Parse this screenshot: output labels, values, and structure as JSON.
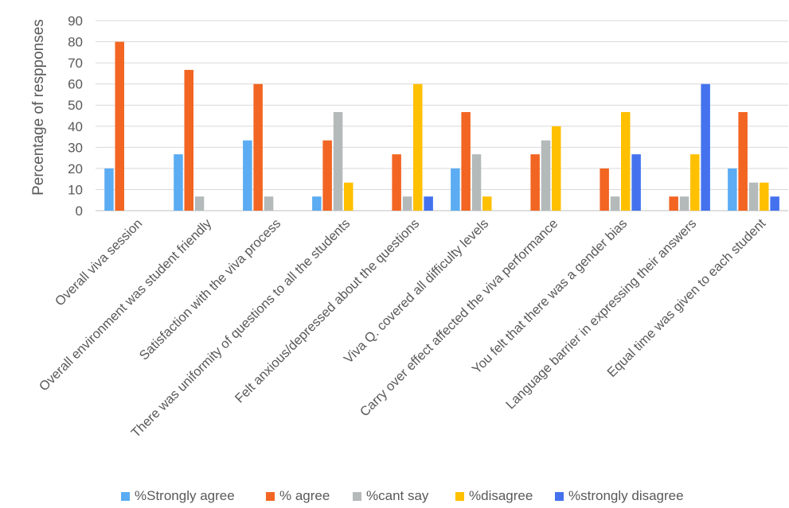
{
  "chart_data": {
    "type": "bar",
    "title": "",
    "xlabel": "",
    "ylabel": "Percentage of respponses",
    "ylim": [
      0,
      90
    ],
    "yticks": [
      0,
      10,
      20,
      30,
      40,
      50,
      60,
      70,
      80,
      90
    ],
    "grid": true,
    "legend_position": "bottom",
    "categories": [
      "Overall viva session",
      "Overall environment was student friendly",
      "Satisfaction with the viva process",
      "There was uniformity of questions to all the students",
      "Felt anxious/depressed about the questions",
      "Viva Q. covered all difficulty levels",
      "Carry over effect affected the viva performance",
      "You felt that there was a gender bias",
      "Language barrier in expressing their answers",
      "Equal time was given to each student"
    ],
    "series": [
      {
        "name": "%Strongly agree",
        "color": "#5BACF2",
        "values": [
          20,
          26.7,
          33.3,
          6.7,
          0,
          20,
          0,
          0,
          0,
          20
        ]
      },
      {
        "name": "% agree",
        "color": "#F26522",
        "values": [
          80,
          66.7,
          60,
          33.3,
          26.7,
          46.7,
          26.7,
          20,
          6.7,
          46.7
        ]
      },
      {
        "name": "%cant say",
        "color": "#B4B9B9",
        "values": [
          0,
          6.7,
          6.7,
          46.7,
          6.7,
          26.7,
          33.3,
          6.7,
          6.7,
          13.3
        ]
      },
      {
        "name": "%disagree",
        "color": "#FFC000",
        "values": [
          0,
          0,
          0,
          13.3,
          60,
          6.7,
          40,
          46.7,
          26.7,
          13.3
        ]
      },
      {
        "name": "%strongly disagree",
        "color": "#4472EE",
        "values": [
          0,
          0,
          0,
          0,
          6.7,
          0,
          0,
          26.7,
          60,
          6.7
        ]
      }
    ]
  }
}
